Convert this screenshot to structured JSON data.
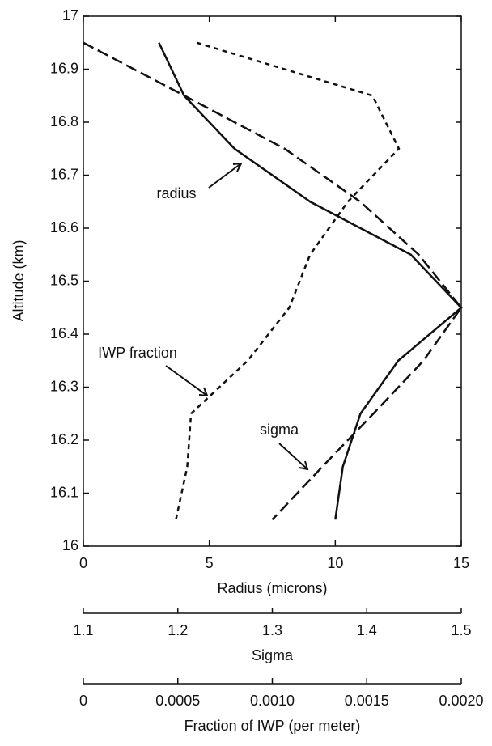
{
  "chart_data": {
    "type": "line",
    "ylabel": "Altitude (km)",
    "ylim": [
      16,
      17
    ],
    "yticks": [
      16,
      16.1,
      16.2,
      16.3,
      16.4,
      16.5,
      16.6,
      16.7,
      16.8,
      16.9,
      17
    ],
    "y": [
      16.95,
      16.85,
      16.75,
      16.65,
      16.55,
      16.45,
      16.35,
      16.25,
      16.15,
      16.05
    ],
    "x_axes": [
      {
        "label": "Radius (microns)",
        "xlim": [
          0,
          15
        ],
        "xticks": [
          0,
          5,
          10,
          15
        ]
      },
      {
        "label": "Sigma",
        "xlim": [
          1.1,
          1.5
        ],
        "xticks": [
          1.1,
          1.2,
          1.3,
          1.4,
          1.5
        ]
      },
      {
        "label": "Fraction of IWP (per meter)",
        "xlim": [
          0,
          0.002
        ],
        "xticks": [
          0,
          0.0005,
          {
            "value": 0.001,
            "label": "0.0010"
          },
          0.0015,
          {
            "value": 0.002,
            "label": "0.0020"
          }
        ]
      }
    ],
    "series": [
      {
        "name": "radius",
        "color": "#111111",
        "style": "solid",
        "x_axis": 0,
        "values": [
          3,
          4,
          6,
          9,
          13,
          15,
          12.5,
          11,
          10.3,
          10
        ]
      },
      {
        "name": "sigma",
        "color": "#111111",
        "style": "long-dash",
        "x_axis": 1,
        "values": [
          1.1,
          1.207,
          1.313,
          1.393,
          1.455,
          1.5,
          1.46,
          1.407,
          1.353,
          1.3
        ]
      },
      {
        "name": "IWP fraction",
        "color": "#111111",
        "style": "short-dash",
        "x_axis": 2,
        "values": [
          0.0006,
          0.00153,
          0.00167,
          0.0014,
          0.0012,
          0.00109,
          0.00087,
          0.00057,
          0.00055,
          0.00049
        ]
      }
    ]
  }
}
